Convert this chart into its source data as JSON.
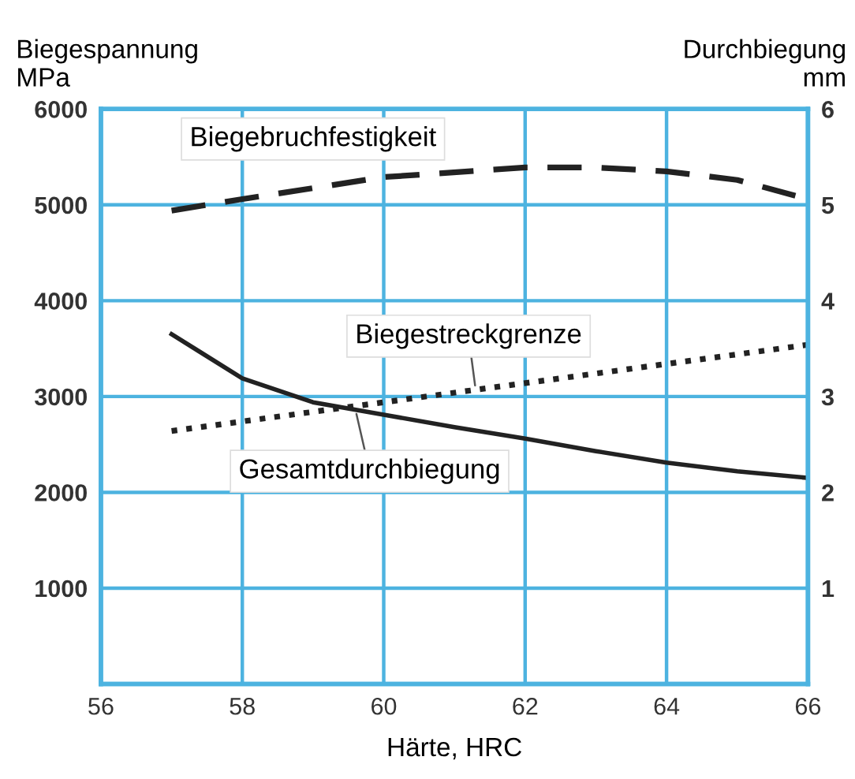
{
  "chart_data": {
    "type": "line",
    "xlabel": "Härte, HRC",
    "ylabel": "Biegespannung\nMPa",
    "y2label": "Durchbiegung\nmm",
    "xlim": [
      56,
      66
    ],
    "xticks": [
      56,
      58,
      60,
      62,
      64,
      66
    ],
    "ylim": [
      0,
      6000
    ],
    "yticks": [
      1000,
      2000,
      3000,
      4000,
      5000,
      6000
    ],
    "y2lim": [
      0,
      6
    ],
    "y2ticks": [
      1,
      2,
      3,
      4,
      5,
      6
    ],
    "grid": true,
    "legend": false,
    "series": [
      {
        "name": "Biegebruchfestigkeit",
        "color": "#222222",
        "line_style": "dashed",
        "x": [
          57,
          58,
          60,
          62,
          63,
          64,
          65,
          66
        ],
        "values": [
          4940,
          5060,
          5290,
          5390,
          5390,
          5350,
          5260,
          5060
        ]
      },
      {
        "name": "Biegestreckgrenze",
        "color": "#222222",
        "line_style": "dotted",
        "x": [
          57,
          66
        ],
        "values": [
          2640,
          3540
        ]
      },
      {
        "name": "Gesamtdurchbiegung",
        "color": "#222222",
        "line_style": "solid",
        "axis": "y2",
        "x": [
          57,
          58,
          59,
          60,
          61,
          62,
          63,
          64,
          65,
          66
        ],
        "values": [
          3.65,
          3.19,
          2.94,
          2.81,
          2.68,
          2.56,
          2.43,
          2.31,
          2.22,
          2.15
        ]
      }
    ]
  }
}
